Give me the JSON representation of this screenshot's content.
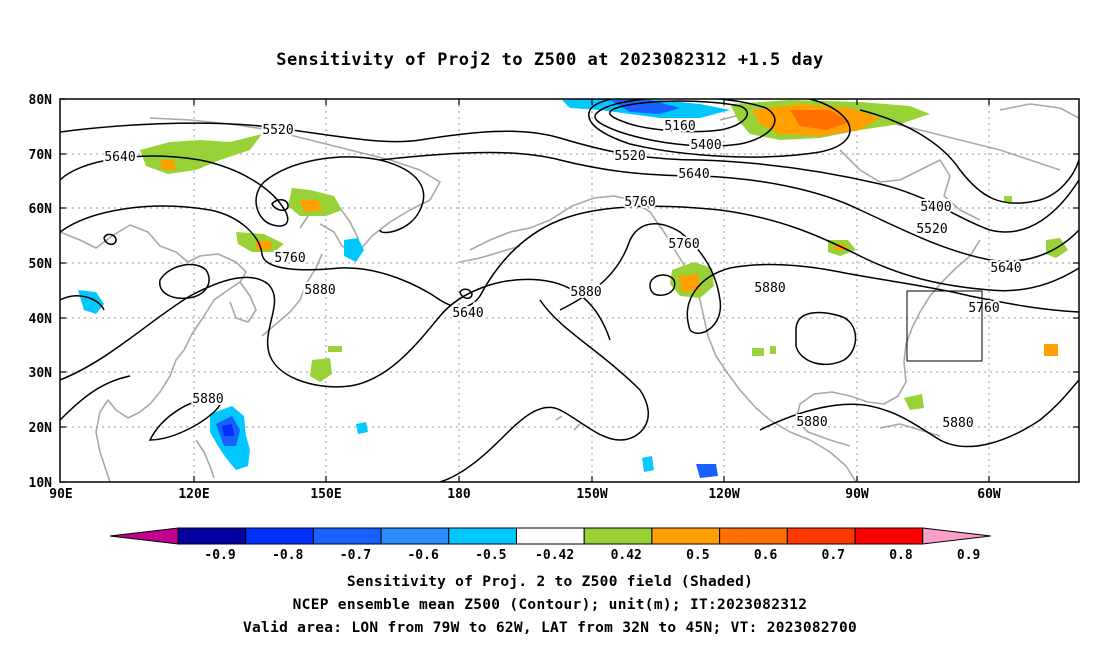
{
  "title": "Sensitivity of Proj2 to Z500 at 2023082312 +1.5 day",
  "map": {
    "lat_labels": [
      "80N",
      "70N",
      "60N",
      "50N",
      "40N",
      "30N",
      "20N",
      "10N"
    ],
    "lon_labels": [
      "90E",
      "120E",
      "150E",
      "180",
      "150W",
      "120W",
      "90W",
      "60W"
    ],
    "contour_labels": [
      "5160",
      "5400",
      "5400",
      "5520",
      "5520",
      "5520",
      "5640",
      "5640",
      "5640",
      "5640",
      "5760",
      "5760",
      "5760",
      "5760",
      "5880",
      "5880",
      "5880",
      "5880",
      "5880",
      "5880"
    ],
    "valid_box": {
      "lon_from": "79W",
      "lon_to": "62W",
      "lat_from": "32N",
      "lat_to": "45N"
    }
  },
  "colorbar": {
    "labels": [
      "-0.9",
      "-0.8",
      "-0.7",
      "-0.6",
      "-0.5",
      "-0.42",
      "0.42",
      "0.5",
      "0.6",
      "0.7",
      "0.8",
      "0.9"
    ],
    "colors": [
      "#c0008f",
      "#0000a0",
      "#0030ff",
      "#1860ff",
      "#2c8cff",
      "#00c8ff",
      "#ffffff",
      "#98d236",
      "#ffa000",
      "#ff7000",
      "#ff3800",
      "#ff0000",
      "#f8a0c8"
    ]
  },
  "footer": {
    "line1": "Sensitivity of Proj. 2 to Z500 field (Shaded)",
    "line2": "NCEP ensemble mean Z500 (Contour); unit(m); IT:2023082312",
    "line3": "Valid area: LON from 79W to 62W, LAT from 32N to 45N; VT: 2023082700"
  }
}
